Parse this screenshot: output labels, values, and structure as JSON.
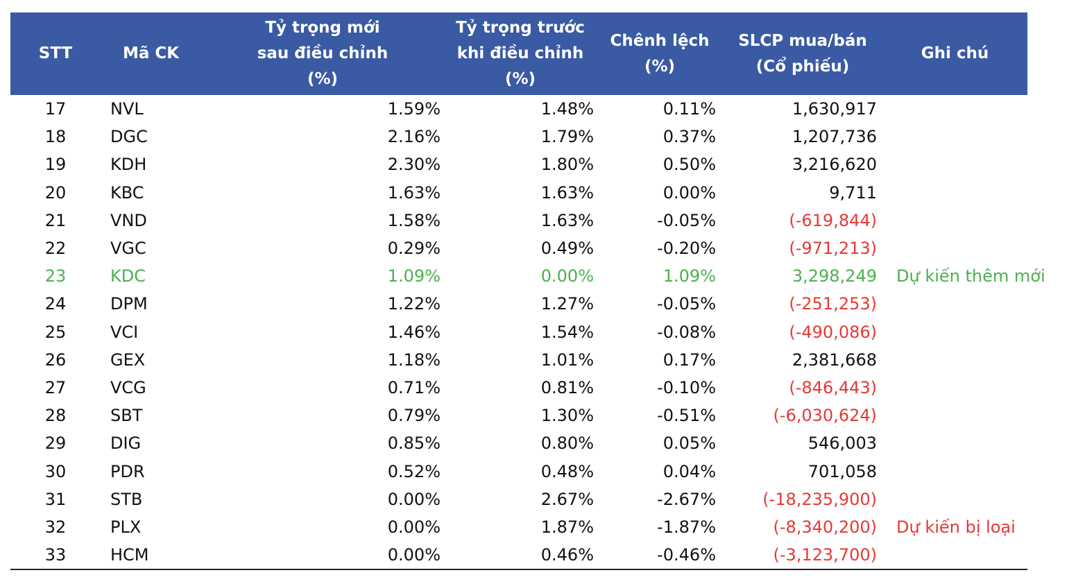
{
  "table": {
    "headers": {
      "stt": [
        "STT"
      ],
      "ma_ck": [
        "Mã CK"
      ],
      "ty_trong_moi": [
        "Tỷ trọng mới",
        "sau điều chỉnh",
        "(%)"
      ],
      "ty_trong_truoc": [
        "Tỷ trọng trước",
        "khi điều chỉnh",
        "(%)"
      ],
      "chenh_lech": [
        "Chênh lệch",
        "(%)"
      ],
      "slcp": [
        "SLCP mua/bán",
        "(Cổ phiếu)"
      ],
      "ghi_chu": [
        "Ghi chú"
      ]
    },
    "header_color": "#3a5aa3",
    "negative_color": "#e53935",
    "highlight_color": "#4caf50",
    "rows": [
      {
        "stt": "17",
        "ma": "NVL",
        "moi": "1.59%",
        "truoc": "1.48%",
        "chenh": "0.11%",
        "slcp": "1,630,917",
        "ghi_chu": "",
        "negative": false,
        "highlight": false
      },
      {
        "stt": "18",
        "ma": "DGC",
        "moi": "2.16%",
        "truoc": "1.79%",
        "chenh": "0.37%",
        "slcp": "1,207,736",
        "ghi_chu": "",
        "negative": false,
        "highlight": false
      },
      {
        "stt": "19",
        "ma": "KDH",
        "moi": "2.30%",
        "truoc": "1.80%",
        "chenh": "0.50%",
        "slcp": "3,216,620",
        "ghi_chu": "",
        "negative": false,
        "highlight": false
      },
      {
        "stt": "20",
        "ma": "KBC",
        "moi": "1.63%",
        "truoc": "1.63%",
        "chenh": "0.00%",
        "slcp": "9,711",
        "ghi_chu": "",
        "negative": false,
        "highlight": false
      },
      {
        "stt": "21",
        "ma": "VND",
        "moi": "1.58%",
        "truoc": "1.63%",
        "chenh": "-0.05%",
        "slcp": "(-619,844)",
        "ghi_chu": "",
        "negative": true,
        "highlight": false
      },
      {
        "stt": "22",
        "ma": "VGC",
        "moi": "0.29%",
        "truoc": "0.49%",
        "chenh": "-0.20%",
        "slcp": "(-971,213)",
        "ghi_chu": "",
        "negative": true,
        "highlight": false
      },
      {
        "stt": "23",
        "ma": "KDC",
        "moi": "1.09%",
        "truoc": "0.00%",
        "chenh": "1.09%",
        "slcp": "3,298,249",
        "ghi_chu": "Dự kiến thêm mới",
        "negative": false,
        "highlight": true
      },
      {
        "stt": "24",
        "ma": "DPM",
        "moi": "1.22%",
        "truoc": "1.27%",
        "chenh": "-0.05%",
        "slcp": "(-251,253)",
        "ghi_chu": "",
        "negative": true,
        "highlight": false
      },
      {
        "stt": "25",
        "ma": "VCI",
        "moi": "1.46%",
        "truoc": "1.54%",
        "chenh": "-0.08%",
        "slcp": "(-490,086)",
        "ghi_chu": "",
        "negative": true,
        "highlight": false
      },
      {
        "stt": "26",
        "ma": "GEX",
        "moi": "1.18%",
        "truoc": "1.01%",
        "chenh": "0.17%",
        "slcp": "2,381,668",
        "ghi_chu": "",
        "negative": false,
        "highlight": false
      },
      {
        "stt": "27",
        "ma": "VCG",
        "moi": "0.71%",
        "truoc": "0.81%",
        "chenh": "-0.10%",
        "slcp": "(-846,443)",
        "ghi_chu": "",
        "negative": true,
        "highlight": false
      },
      {
        "stt": "28",
        "ma": "SBT",
        "moi": "0.79%",
        "truoc": "1.30%",
        "chenh": "-0.51%",
        "slcp": "(-6,030,624)",
        "ghi_chu": "",
        "negative": true,
        "highlight": false
      },
      {
        "stt": "29",
        "ma": "DIG",
        "moi": "0.85%",
        "truoc": "0.80%",
        "chenh": "0.05%",
        "slcp": "546,003",
        "ghi_chu": "",
        "negative": false,
        "highlight": false
      },
      {
        "stt": "30",
        "ma": "PDR",
        "moi": "0.52%",
        "truoc": "0.48%",
        "chenh": "0.04%",
        "slcp": "701,058",
        "ghi_chu": "",
        "negative": false,
        "highlight": false
      },
      {
        "stt": "31",
        "ma": "STB",
        "moi": "0.00%",
        "truoc": "2.67%",
        "chenh": "-2.67%",
        "slcp": "(-18,235,900)",
        "ghi_chu": "",
        "negative": true,
        "highlight": false
      },
      {
        "stt": "32",
        "ma": "PLX",
        "moi": "0.00%",
        "truoc": "1.87%",
        "chenh": "-1.87%",
        "slcp": "(-8,340,200)",
        "ghi_chu": "Dự kiến bị loại",
        "negative": true,
        "highlight": false
      },
      {
        "stt": "33",
        "ma": "HCM",
        "moi": "0.00%",
        "truoc": "0.46%",
        "chenh": "-0.46%",
        "slcp": "(-3,123,700)",
        "ghi_chu": "",
        "negative": true,
        "highlight": false
      }
    ]
  }
}
